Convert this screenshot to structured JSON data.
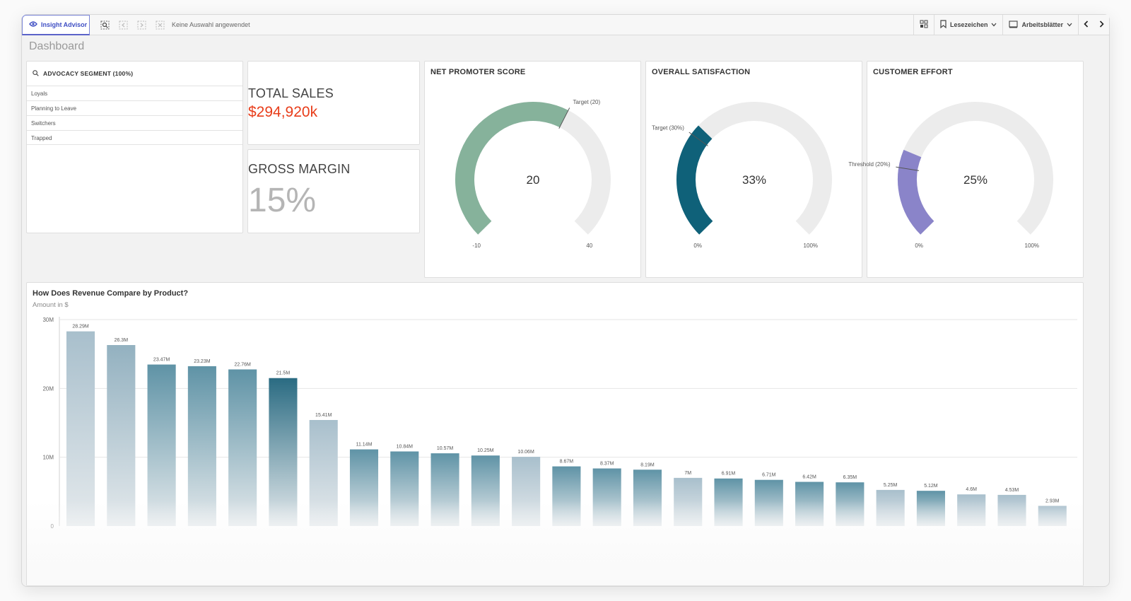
{
  "toolbar": {
    "insight_advisor": "Insight Advisor",
    "no_selection": "Keine Auswahl angewendet",
    "bookmarks": "Lesezeichen",
    "sheets": "Arbeitsblätter"
  },
  "page_title": "Dashboard",
  "filter": {
    "title": "ADVOCACY SEGMENT (100%)",
    "items": [
      "Loyals",
      "Planning to Leave",
      "Switchers",
      "Trapped"
    ]
  },
  "kpis": {
    "total_sales_label": "TOTAL SALES",
    "total_sales_value": "$294,920k",
    "gross_margin_label": "GROSS MARGIN",
    "gross_margin_value": "15%"
  },
  "gauges": [
    {
      "title": "NET PROMOTER SCORE",
      "value_label": "20",
      "min_label": "-10",
      "max_label": "40",
      "marker_label": "Target (20)",
      "fill_fraction": 0.6,
      "marker_fraction": 0.6,
      "color": "#86b29b"
    },
    {
      "title": "OVERALL SATISFACTION",
      "value_label": "33%",
      "min_label": "0%",
      "max_label": "100%",
      "marker_label": "Target (30%)",
      "fill_fraction": 0.33,
      "marker_fraction": 0.3,
      "color": "#0f6179"
    },
    {
      "title": "CUSTOMER EFFORT",
      "value_label": "25%",
      "min_label": "0%",
      "max_label": "100%",
      "marker_label": "Threshold (20%)",
      "fill_fraction": 0.25,
      "marker_fraction": 0.2,
      "color": "#8a84c9"
    }
  ],
  "chart_data": {
    "type": "bar",
    "title": "How Does Revenue Compare by Product?",
    "subtitle": "Amount in $",
    "ylim": [
      0,
      30000000
    ],
    "y_ticks": [
      {
        "value": 0,
        "label": "0"
      },
      {
        "value": 10000000,
        "label": "10M"
      },
      {
        "value": 20000000,
        "label": "20M"
      },
      {
        "value": 30000000,
        "label": "30M"
      }
    ],
    "grid": true,
    "values": [
      28290000,
      26300000,
      23470000,
      23230000,
      22760000,
      21500000,
      15410000,
      11140000,
      10840000,
      10570000,
      10250000,
      10060000,
      8670000,
      8370000,
      8190000,
      7000000,
      6910000,
      6710000,
      6420000,
      6350000,
      5250000,
      5120000,
      4600000,
      4530000,
      2930000
    ],
    "value_labels": [
      "28.29M",
      "26.3M",
      "23.47M",
      "23.23M",
      "22.76M",
      "21.5M",
      "15.41M",
      "11.14M",
      "10.84M",
      "10.57M",
      "10.25M",
      "10.06M",
      "8.67M",
      "8.37M",
      "8.19M",
      "7M",
      "6.91M",
      "6.71M",
      "6.42M",
      "6.35M",
      "5.25M",
      "5.12M",
      "4.6M",
      "4.53M",
      "2.93M"
    ],
    "bar_colors": [
      "#a8bfcc",
      "#93b1c0",
      "#5f93a6",
      "#5f93a6",
      "#5f93a6",
      "#2a6b82",
      "#a8bfcc",
      "#5f93a6",
      "#5f93a6",
      "#5f93a6",
      "#5f93a6",
      "#a8bfcc",
      "#5f93a6",
      "#5f93a6",
      "#5f93a6",
      "#a8bfcc",
      "#5f93a6",
      "#5f93a6",
      "#5f93a6",
      "#5f93a6",
      "#a8bfcc",
      "#5f93a6",
      "#a8bfcc",
      "#a8bfcc",
      "#a8bfcc"
    ]
  }
}
